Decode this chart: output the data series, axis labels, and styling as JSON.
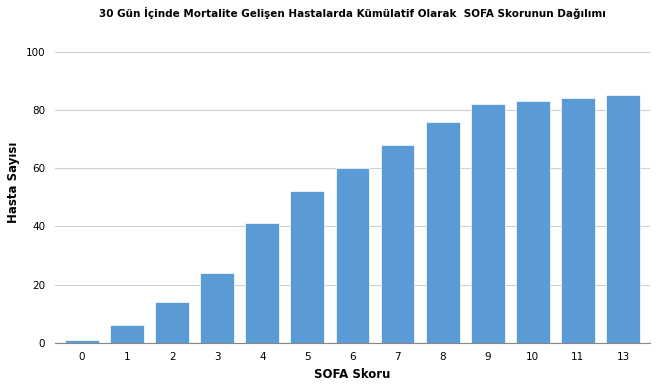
{
  "title": "30 Gün İçinde Mortalite Gelişen Hastalarda Kümülatif Olarak  SOFA Skorunun Dağılımı",
  "xlabel": "SOFA Skoru",
  "ylabel": "Hasta Sayısı",
  "categories": [
    "0",
    "1",
    "2",
    "3",
    "4",
    "5",
    "6",
    "7",
    "8",
    "9",
    "10",
    "11",
    "13"
  ],
  "values": [
    1,
    6,
    14,
    24,
    41,
    52,
    60,
    68,
    76,
    82,
    83,
    84,
    85
  ],
  "bar_color": "#5b9bd5",
  "ylim": [
    0,
    110
  ],
  "yticks": [
    0,
    20,
    40,
    60,
    80,
    100
  ],
  "title_fontsize": 7.5,
  "label_fontsize": 8.5,
  "tick_fontsize": 7.5,
  "background_color": "#ffffff",
  "grid_color": "#d0d0d0",
  "bar_width": 0.75
}
